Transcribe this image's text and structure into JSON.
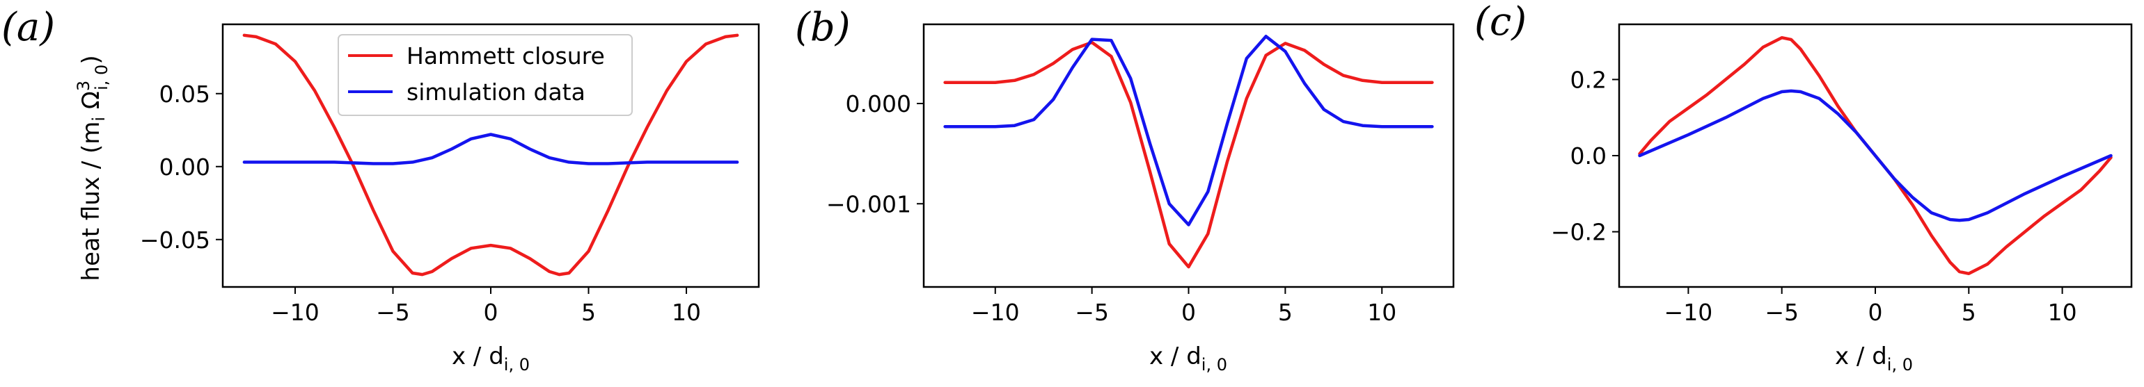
{
  "colors": {
    "hammett": "#ee1c1c",
    "simulation": "#1414ee",
    "axes": "#000000",
    "background": "#ffffff"
  },
  "chart_data": [
    {
      "type": "line",
      "panel_label": "(a)",
      "xlabel": "x / d",
      "xlabel_sub": "i, 0",
      "ylabel": "heat flux / (m",
      "ylabel_sub1": "i",
      "ylabel_mid": " Ω",
      "ylabel_sup": "3",
      "ylabel_sub2": "i, 0",
      "ylabel_end": ")",
      "xlim": [
        -13.7,
        13.7
      ],
      "ylim": [
        -0.0825,
        0.0975
      ],
      "xticks": [
        -10,
        -5,
        0,
        5,
        10
      ],
      "xtick_labels": [
        "−10",
        "−5",
        "0",
        "5",
        "10"
      ],
      "yticks": [
        -0.05,
        0.0,
        0.05
      ],
      "ytick_labels": [
        "−0.05",
        "0.00",
        "0.05"
      ],
      "legend": {
        "placement": "upper center",
        "entries": [
          "Hammett closure",
          "simulation data"
        ]
      },
      "series": [
        {
          "name": "Hammett closure",
          "color": "#ee1c1c",
          "x": [
            -12.6,
            -12.0,
            -11.0,
            -10.0,
            -9.0,
            -8.0,
            -7.0,
            -6.0,
            -5.0,
            -4.0,
            -3.5,
            -3.0,
            -2.0,
            -1.0,
            0.0,
            1.0,
            2.0,
            3.0,
            3.5,
            4.0,
            5.0,
            6.0,
            7.0,
            8.0,
            9.0,
            10.0,
            11.0,
            12.0,
            12.6
          ],
          "y": [
            0.09,
            0.089,
            0.084,
            0.072,
            0.052,
            0.027,
            0.0,
            -0.03,
            -0.058,
            -0.073,
            -0.074,
            -0.072,
            -0.063,
            -0.056,
            -0.054,
            -0.056,
            -0.063,
            -0.072,
            -0.074,
            -0.073,
            -0.058,
            -0.03,
            0.0,
            0.027,
            0.052,
            0.072,
            0.084,
            0.089,
            0.09
          ]
        },
        {
          "name": "simulation data",
          "color": "#1414ee",
          "x": [
            -12.6,
            -10.0,
            -8.0,
            -6.0,
            -5.0,
            -4.0,
            -3.0,
            -2.0,
            -1.0,
            0.0,
            1.0,
            2.0,
            3.0,
            4.0,
            5.0,
            6.0,
            8.0,
            10.0,
            12.6
          ],
          "y": [
            0.003,
            0.003,
            0.003,
            0.002,
            0.002,
            0.003,
            0.006,
            0.012,
            0.019,
            0.022,
            0.019,
            0.012,
            0.006,
            0.003,
            0.002,
            0.002,
            0.003,
            0.003,
            0.003
          ]
        }
      ]
    },
    {
      "type": "line",
      "panel_label": "(b)",
      "xlabel": "x / d",
      "xlabel_sub": "i, 0",
      "xlim": [
        -13.7,
        13.7
      ],
      "ylim": [
        -0.00183,
        0.00079
      ],
      "xticks": [
        -10,
        -5,
        0,
        5,
        10
      ],
      "xtick_labels": [
        "−10",
        "−5",
        "0",
        "5",
        "10"
      ],
      "yticks": [
        -0.001,
        0.0
      ],
      "ytick_labels": [
        "−0.001",
        "0.000"
      ],
      "series": [
        {
          "name": "Hammett closure",
          "color": "#ee1c1c",
          "x": [
            -12.6,
            -10.0,
            -9.0,
            -8.0,
            -7.0,
            -6.0,
            -5.0,
            -4.0,
            -3.0,
            -2.0,
            -1.0,
            0.0,
            1.0,
            2.0,
            3.0,
            4.0,
            5.0,
            6.0,
            7.0,
            8.0,
            9.0,
            10.0,
            12.6
          ],
          "y": [
            0.00021,
            0.00021,
            0.00023,
            0.00029,
            0.0004,
            0.00054,
            0.00061,
            0.00047,
            1e-05,
            -0.00068,
            -0.0014,
            -0.00163,
            -0.0013,
            -0.00058,
            5e-05,
            0.00048,
            0.0006,
            0.00053,
            0.00039,
            0.00028,
            0.00023,
            0.00021,
            0.00021
          ]
        },
        {
          "name": "simulation data",
          "color": "#1414ee",
          "x": [
            -12.6,
            -10.0,
            -9.0,
            -8.0,
            -7.0,
            -6.0,
            -5.0,
            -4.0,
            -3.0,
            -2.0,
            -1.0,
            0.0,
            1.0,
            2.0,
            3.0,
            4.0,
            5.0,
            6.0,
            7.0,
            8.0,
            9.0,
            10.0,
            12.6
          ],
          "y": [
            -0.00023,
            -0.00023,
            -0.00022,
            -0.00016,
            4e-05,
            0.00036,
            0.00064,
            0.00063,
            0.00025,
            -0.0004,
            -0.001,
            -0.00121,
            -0.00088,
            -0.0002,
            0.00045,
            0.00067,
            0.00052,
            0.0002,
            -6e-05,
            -0.00018,
            -0.00022,
            -0.00023,
            -0.00023
          ]
        }
      ]
    },
    {
      "type": "line",
      "panel_label": "(c)",
      "xlabel": "x / d",
      "xlabel_sub": "i, 0",
      "xlim": [
        -13.7,
        13.7
      ],
      "ylim": [
        -0.345,
        0.345
      ],
      "xticks": [
        -10,
        -5,
        0,
        5,
        10
      ],
      "xtick_labels": [
        "−10",
        "−5",
        "0",
        "5",
        "10"
      ],
      "yticks": [
        -0.2,
        0.0,
        0.2
      ],
      "ytick_labels": [
        "−0.2",
        "0.0",
        "0.2"
      ],
      "series": [
        {
          "name": "Hammett closure",
          "color": "#ee1c1c",
          "x": [
            -12.6,
            -12.0,
            -11.0,
            -10.0,
            -9.0,
            -8.0,
            -7.0,
            -6.0,
            -5.0,
            -4.5,
            -4.0,
            -3.0,
            -2.0,
            -1.0,
            0.0,
            1.0,
            2.0,
            3.0,
            4.0,
            4.5,
            5.0,
            6.0,
            7.0,
            8.0,
            9.0,
            10.0,
            11.0,
            12.0,
            12.6
          ],
          "y": [
            0.005,
            0.04,
            0.09,
            0.125,
            0.16,
            0.2,
            0.24,
            0.285,
            0.31,
            0.305,
            0.28,
            0.21,
            0.13,
            0.06,
            0.0,
            -0.06,
            -0.13,
            -0.21,
            -0.28,
            -0.305,
            -0.31,
            -0.285,
            -0.24,
            -0.2,
            -0.16,
            -0.125,
            -0.09,
            -0.04,
            -0.005
          ]
        },
        {
          "name": "simulation data",
          "color": "#1414ee",
          "x": [
            -12.6,
            -10.0,
            -8.0,
            -6.0,
            -5.0,
            -4.5,
            -4.0,
            -3.0,
            -2.0,
            -1.0,
            0.0,
            1.0,
            2.0,
            3.0,
            4.0,
            4.5,
            5.0,
            6.0,
            8.0,
            10.0,
            12.6
          ],
          "y": [
            0.0,
            0.055,
            0.1,
            0.15,
            0.168,
            0.17,
            0.168,
            0.15,
            0.11,
            0.06,
            0.0,
            -0.06,
            -0.11,
            -0.15,
            -0.168,
            -0.17,
            -0.168,
            -0.15,
            -0.1,
            -0.055,
            0.0
          ]
        }
      ]
    }
  ]
}
